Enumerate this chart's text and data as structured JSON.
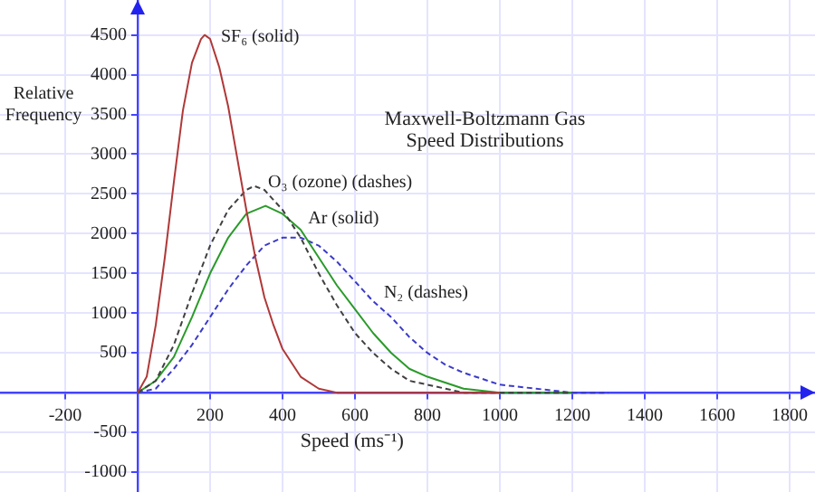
{
  "chart_data": {
    "type": "line",
    "title": "Maxwell-Boltzmann Gas Speed Distributions",
    "xlabel": "Speed (ms⁻¹)",
    "ylabel": "Relative Frequency",
    "xlim": [
      -380,
      1870
    ],
    "ylim": [
      -1250,
      4940
    ],
    "xticks": [
      -200,
      {
        "value": 0,
        "label": null
      },
      200,
      400,
      600,
      800,
      1000,
      1200,
      1400,
      1600,
      1800
    ],
    "yticks": [
      -1000,
      -500,
      {
        "value": 0,
        "label": null
      },
      500,
      1000,
      1500,
      2000,
      2500,
      3000,
      3500,
      4000,
      4500
    ],
    "grid": true,
    "legend": false,
    "marker": "none",
    "series": [
      {
        "color": "#b03838",
        "line_style": "solid",
        "x": [
          0,
          25,
          50,
          75,
          100,
          125,
          150,
          175,
          185,
          200,
          225,
          250,
          275,
          300,
          325,
          350,
          375,
          400,
          450,
          500,
          550,
          600,
          800,
          1000
        ],
        "values": [
          0,
          200,
          850,
          1700,
          2650,
          3550,
          4150,
          4450,
          4500,
          4450,
          4100,
          3600,
          2950,
          2300,
          1700,
          1200,
          850,
          550,
          200,
          50,
          0,
          0,
          0,
          0
        ]
      },
      {
        "color": "#404040",
        "line_style": "dashed",
        "x": [
          0,
          50,
          100,
          150,
          200,
          250,
          300,
          322,
          350,
          400,
          450,
          500,
          550,
          600,
          650,
          700,
          750,
          800,
          900,
          1000,
          1200
        ],
        "values": [
          0,
          150,
          600,
          1250,
          1850,
          2300,
          2550,
          2600,
          2550,
          2300,
          1950,
          1500,
          1100,
          750,
          500,
          300,
          150,
          100,
          0,
          0,
          0
        ]
      },
      {
        "color": "#2a9a2a",
        "line_style": "solid",
        "x": [
          0,
          50,
          100,
          150,
          200,
          250,
          300,
          353,
          400,
          450,
          500,
          550,
          600,
          650,
          700,
          750,
          800,
          900,
          1000,
          1100,
          1200
        ],
        "values": [
          0,
          150,
          450,
          950,
          1500,
          1950,
          2250,
          2350,
          2250,
          2050,
          1700,
          1350,
          1050,
          750,
          500,
          300,
          200,
          50,
          0,
          0,
          0
        ]
      },
      {
        "color": "#3a3ac8",
        "line_style": "dashed",
        "x": [
          0,
          50,
          100,
          150,
          200,
          250,
          300,
          350,
          400,
          422,
          450,
          500,
          550,
          600,
          650,
          700,
          750,
          800,
          850,
          900,
          1000,
          1100,
          1200,
          1300
        ],
        "values": [
          0,
          50,
          300,
          600,
          950,
          1300,
          1600,
          1850,
          1950,
          1950,
          1950,
          1850,
          1650,
          1400,
          1150,
          950,
          700,
          500,
          350,
          250,
          100,
          50,
          0,
          0
        ]
      }
    ],
    "annotations": [
      "SF₆ (solid)",
      "O₃ (ozone) (dashes)",
      "Ar (solid)",
      "N₂ (dashes)"
    ]
  }
}
